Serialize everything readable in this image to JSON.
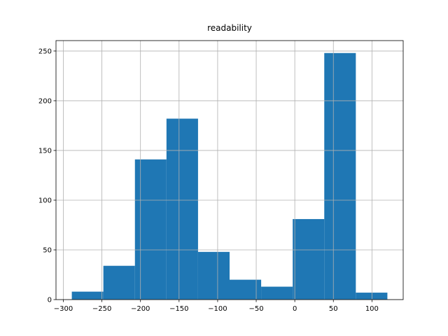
{
  "chart_data": {
    "type": "histogram",
    "title": "readability",
    "bins": [
      -289,
      -248.1,
      -207.2,
      -166.3,
      -125.4,
      -84.5,
      -43.6,
      -2.7,
      38.2,
      79.1,
      120
    ],
    "values": [
      8,
      34,
      141,
      182,
      48,
      20,
      13,
      81,
      248,
      7
    ],
    "color": "#1f77b4",
    "xlim": [
      -309.5,
      140.5
    ],
    "ylim": [
      0,
      260.5
    ],
    "xticks": [
      {
        "value": -300,
        "label": "−300"
      },
      {
        "value": -250,
        "label": "−250"
      },
      {
        "value": -200,
        "label": "−200"
      },
      {
        "value": -150,
        "label": "−150"
      },
      {
        "value": -100,
        "label": "−100"
      },
      {
        "value": -50,
        "label": "−50"
      },
      0,
      50,
      100
    ],
    "yticks": [
      0,
      50,
      100,
      150,
      200,
      250
    ],
    "grid": true
  }
}
